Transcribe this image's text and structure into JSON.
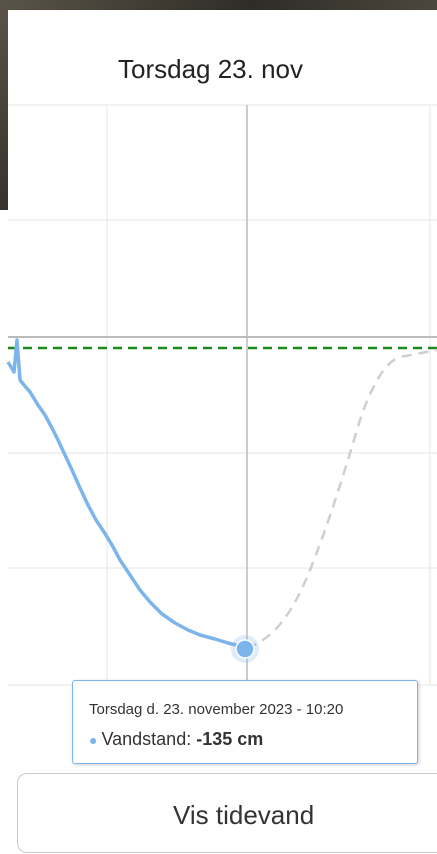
{
  "header": {
    "title": "Torsdag 23. nov"
  },
  "tooltip": {
    "title": "Torsdag d. 23. november 2023 - 10:20",
    "label": "Vandstand:",
    "value": "-135 cm"
  },
  "button": {
    "label": "Vis tidevand"
  }
}
